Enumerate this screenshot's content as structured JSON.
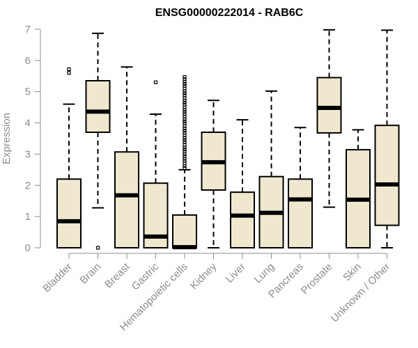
{
  "chart_data": {
    "type": "box",
    "title": "ENSG00000222014 - RAB6C",
    "ylabel": "Expression",
    "ylim": [
      0,
      7
    ],
    "yticks": [
      0,
      1,
      2,
      3,
      4,
      5,
      6,
      7
    ],
    "box_fill": "#efe8cf",
    "box_stroke": "#000000",
    "categories": [
      "Bladder",
      "Brain",
      "Breast",
      "Gastric",
      "Hematopoietic cells",
      "Kidney",
      "Liver",
      "Lung",
      "Pancreas",
      "Prostate",
      "Skin",
      "Unknown / Other"
    ],
    "boxes": [
      {
        "whisker_low": 0,
        "q1": 0,
        "median": 0.85,
        "q3": 2.2,
        "whisker_high": 4.6,
        "outliers": [
          5.6,
          5.72
        ]
      },
      {
        "whisker_low": 1.28,
        "q1": 3.7,
        "median": 4.36,
        "q3": 5.35,
        "whisker_high": 6.87,
        "outliers": [
          0.0
        ]
      },
      {
        "whisker_low": 0,
        "q1": 0,
        "median": 1.68,
        "q3": 3.07,
        "whisker_high": 5.79,
        "outliers": []
      },
      {
        "whisker_low": 0,
        "q1": 0,
        "median": 0.36,
        "q3": 2.07,
        "whisker_high": 4.28,
        "outliers": [
          5.3
        ]
      },
      {
        "whisker_low": 0,
        "q1": 0,
        "median": 0.02,
        "q3": 1.05,
        "whisker_high": 2.5,
        "outliers": [
          2.55,
          2.62,
          2.7,
          2.78,
          2.85,
          2.93,
          3.0,
          3.08,
          3.15,
          3.22,
          3.3,
          3.38,
          3.45,
          3.52,
          3.6,
          3.68,
          3.75,
          3.82,
          3.9,
          3.98,
          4.05,
          4.12,
          4.2,
          4.28,
          4.35,
          4.42,
          4.5,
          4.58,
          4.65,
          4.72,
          4.8,
          4.88,
          4.95,
          5.02,
          5.1,
          5.18,
          5.25,
          5.32,
          5.4,
          5.47
        ]
      },
      {
        "whisker_low": 0,
        "q1": 1.85,
        "median": 2.74,
        "q3": 3.7,
        "whisker_high": 4.72,
        "outliers": []
      },
      {
        "whisker_low": 0,
        "q1": 0,
        "median": 1.03,
        "q3": 1.78,
        "whisker_high": 4.1,
        "outliers": []
      },
      {
        "whisker_low": 0,
        "q1": 0,
        "median": 1.12,
        "q3": 2.28,
        "whisker_high": 5.02,
        "outliers": []
      },
      {
        "whisker_low": 0,
        "q1": 0,
        "median": 1.55,
        "q3": 2.2,
        "whisker_high": 3.85,
        "outliers": []
      },
      {
        "whisker_low": 1.3,
        "q1": 3.68,
        "median": 4.48,
        "q3": 5.45,
        "whisker_high": 6.98,
        "outliers": []
      },
      {
        "whisker_low": 0,
        "q1": 0,
        "median": 1.54,
        "q3": 3.14,
        "whisker_high": 3.78,
        "outliers": []
      },
      {
        "whisker_low": 0,
        "q1": 0.72,
        "median": 2.03,
        "q3": 3.92,
        "whisker_high": 6.97,
        "outliers": []
      }
    ]
  }
}
